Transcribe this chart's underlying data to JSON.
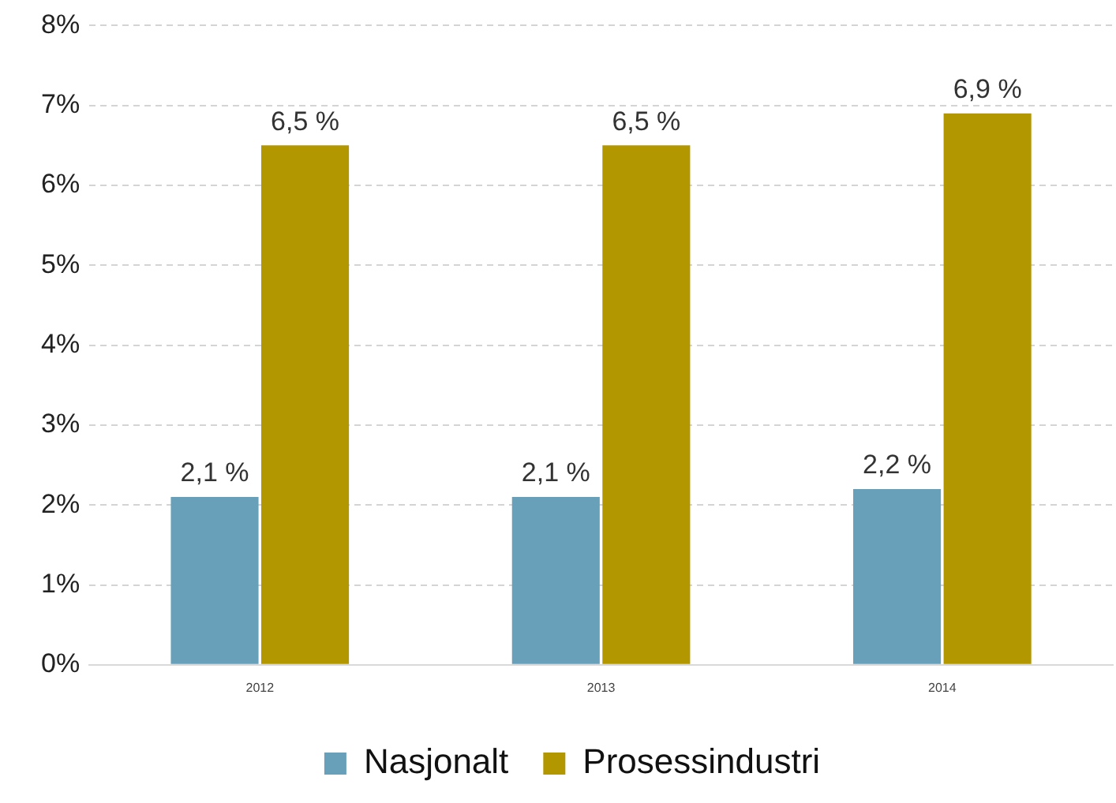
{
  "chart_data": {
    "type": "bar",
    "categories": [
      "2012",
      "2013",
      "2014"
    ],
    "series": [
      {
        "name": "Nasjonalt",
        "color": "#67a0b8",
        "values": [
          2.1,
          2.1,
          2.2
        ],
        "value_labels": [
          "2,1 %",
          "2,1 %",
          "2,2 %"
        ]
      },
      {
        "name": "Prosessindustri",
        "color": "#b39700",
        "values": [
          6.5,
          6.5,
          6.9
        ],
        "value_labels": [
          "6,5 %",
          "6,5 %",
          "6,9 %"
        ]
      }
    ],
    "ylim": [
      0,
      8
    ],
    "yticks": [
      {
        "value": 0,
        "label": "0%"
      },
      {
        "value": 1,
        "label": "1%"
      },
      {
        "value": 2,
        "label": "2%"
      },
      {
        "value": 3,
        "label": "3%"
      },
      {
        "value": 4,
        "label": "4%"
      },
      {
        "value": 5,
        "label": "5%"
      },
      {
        "value": 6,
        "label": "6%"
      },
      {
        "value": 7,
        "label": "7%"
      },
      {
        "value": 8,
        "label": "8%"
      }
    ],
    "grid": "y",
    "legend": "bottom"
  }
}
